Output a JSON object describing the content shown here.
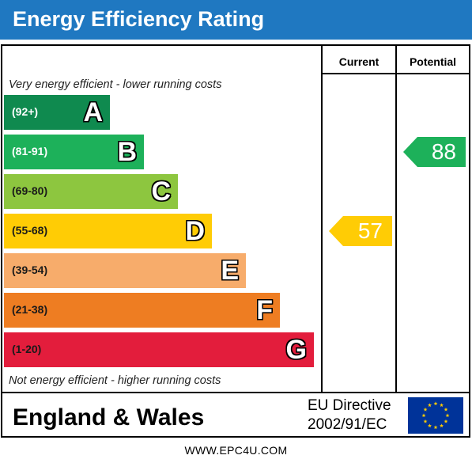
{
  "header": {
    "title": "Energy Efficiency Rating"
  },
  "columns": {
    "current": "Current",
    "potential": "Potential"
  },
  "captions": {
    "top": "Very energy efficient - lower running costs",
    "bottom": "Not energy efficient - higher running costs"
  },
  "chart_data": {
    "type": "bar",
    "title": "Energy Efficiency Rating",
    "bands": [
      {
        "letter": "A",
        "range": "(92+)",
        "color": "#0f8a4f",
        "range_color": "#ffffff"
      },
      {
        "letter": "B",
        "range": "(81-91)",
        "color": "#1db15a",
        "range_color": "#ffffff"
      },
      {
        "letter": "C",
        "range": "(69-80)",
        "color": "#8dc63f",
        "range_color": "#1a1a1a"
      },
      {
        "letter": "D",
        "range": "(55-68)",
        "color": "#ffcc05",
        "range_color": "#1a1a1a"
      },
      {
        "letter": "E",
        "range": "(39-54)",
        "color": "#f7ac6b",
        "range_color": "#1a1a1a"
      },
      {
        "letter": "F",
        "range": "(21-38)",
        "color": "#ee7d22",
        "range_color": "#1a1a1a"
      },
      {
        "letter": "G",
        "range": "(1-20)",
        "color": "#e31d3c",
        "range_color": "#1a1a1a"
      }
    ],
    "current": {
      "value": 57,
      "band": "D",
      "color": "#ffcc05"
    },
    "potential": {
      "value": 88,
      "band": "B",
      "color": "#1db15a"
    }
  },
  "footer": {
    "country": "England & Wales",
    "directive_line1": "EU Directive",
    "directive_line2": "2002/91/EC",
    "flag_colors": {
      "background": "#003399",
      "stars": "#ffcc00"
    }
  },
  "website": "WWW.EPC4U.COM"
}
